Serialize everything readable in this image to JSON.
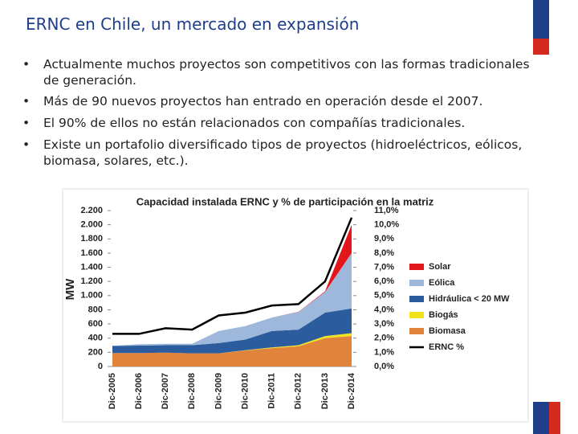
{
  "title": "ERNC en Chile, un mercado en expansión",
  "bullets": [
    "Actualmente muchos proyectos son competitivos con las formas tradicionales de generación.",
    "Más de 90 nuevos proyectos han entrado en operación desde el 2007.",
    "El 90% de ellos no están relacionados con compañías tradicionales.",
    "Existe un portafolio diversificado tipos de proyectos (hidroeléctricos, eólicos, biomasa, solares, etc.)."
  ],
  "chart_data": {
    "type": "area",
    "title": "Capacidad instalada ERNC y % de participación en la matriz",
    "y_label": "MW",
    "categories": [
      "Dic-2005",
      "Dic-2006",
      "Dic-2007",
      "Dic-2008",
      "Dic-2009",
      "Dic-2010",
      "Dic-2011",
      "Dic-2012",
      "Dic-2013",
      "Dic-2014"
    ],
    "series": [
      {
        "name": "Biomasa",
        "color": "#e0843c",
        "values": [
          190,
          190,
          195,
          185,
          185,
          225,
          260,
          285,
          400,
          430
        ]
      },
      {
        "name": "Biogás",
        "color": "#f2e21c",
        "values": [
          0,
          0,
          0,
          0,
          0,
          5,
          10,
          15,
          30,
          40
        ]
      },
      {
        "name": "Hidráulica < 20 MW",
        "color": "#2b5c9e",
        "values": [
          100,
          105,
          105,
          115,
          145,
          150,
          230,
          220,
          330,
          350
        ]
      },
      {
        "name": "Eólica",
        "color": "#9db8da",
        "values": [
          2,
          20,
          20,
          20,
          170,
          190,
          190,
          250,
          290,
          780
        ]
      },
      {
        "name": "Solar",
        "color": "#e3161c",
        "values": [
          0,
          0,
          0,
          0,
          0,
          0,
          0,
          2,
          10,
          400
        ]
      },
      {
        "name": "ERNC %",
        "color": "#000000",
        "axis": "y2",
        "values": [
          2.3,
          2.3,
          2.7,
          2.6,
          3.6,
          3.8,
          4.3,
          4.4,
          6.0,
          10.5
        ]
      }
    ],
    "ylim": [
      0,
      2200
    ],
    "yticks": [
      0,
      200,
      400,
      600,
      800,
      {
        "value": 1000,
        "label": "1.000"
      },
      {
        "value": 1200,
        "label": "1.200"
      },
      {
        "value": 1400,
        "label": "1.400"
      },
      {
        "value": 1600,
        "label": "1.600"
      },
      {
        "value": 1800,
        "label": "1.800"
      },
      {
        "value": 2000,
        "label": "2.000"
      },
      {
        "value": 2200,
        "label": "2.200"
      }
    ],
    "y2lim": [
      0,
      11
    ],
    "y2ticks": [
      {
        "value": 0,
        "label": "0,0%"
      },
      {
        "value": 1,
        "label": "1,0%"
      },
      {
        "value": 2,
        "label": "2,0%"
      },
      {
        "value": 3,
        "label": "3,0%"
      },
      {
        "value": 4,
        "label": "4,0%"
      },
      {
        "value": 5,
        "label": "5,0%"
      },
      {
        "value": 6,
        "label": "6,0%"
      },
      {
        "value": 7,
        "label": "7,0%"
      },
      {
        "value": 8,
        "label": "8,0%"
      },
      {
        "value": 9,
        "label": "9,0%"
      },
      {
        "value": 10,
        "label": "10,0%"
      },
      {
        "value": 11,
        "label": "11,0%"
      }
    ]
  }
}
